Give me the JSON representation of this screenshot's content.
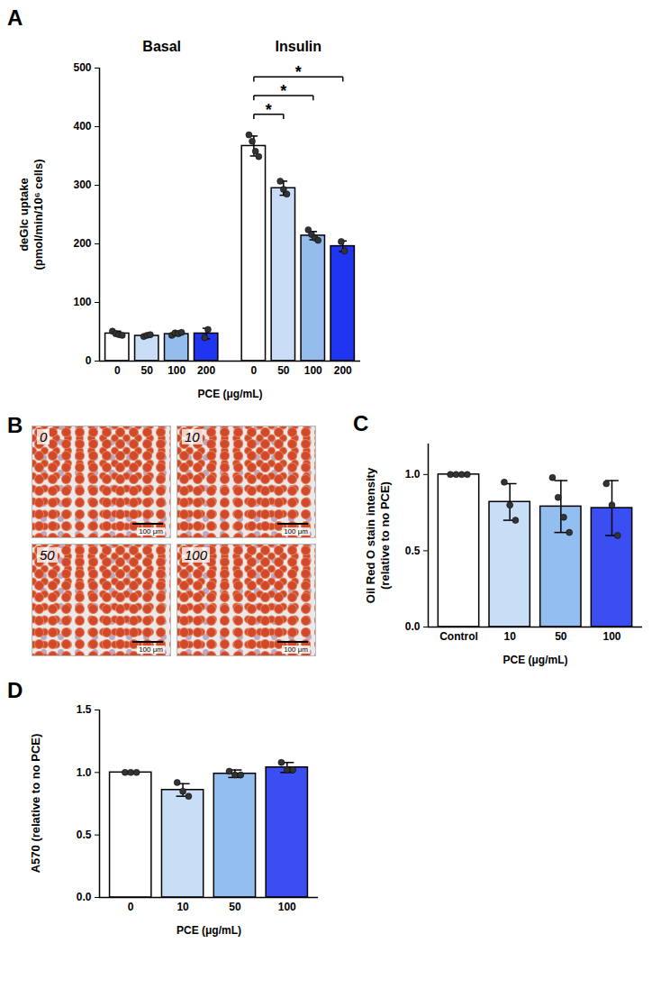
{
  "chart_data": [
    {
      "panel_label": "A",
      "type": "bar",
      "y_label": "deGlc uptake\n(pmol/min/10⁶ cells)",
      "x_label": "PCE (μg/mL)",
      "categories": [
        "0",
        "50",
        "100",
        "200"
      ],
      "colors": [
        "#ffffff",
        "#c9ddf6",
        "#94bdee",
        "#1f35f0"
      ],
      "series": [
        {
          "name": "Basal",
          "values": [
            47,
            43,
            46,
            47
          ],
          "errors": [
            4,
            2,
            3,
            9
          ],
          "points": [
            [
              51,
              47,
              45,
              44
            ],
            [
              42,
              44,
              45
            ],
            [
              44,
              48,
              47,
              49
            ],
            [
              40,
              54
            ]
          ]
        },
        {
          "name": "Insulin",
          "values": [
            367,
            295,
            214,
            196
          ],
          "errors": [
            17,
            12,
            7,
            9
          ],
          "points": [
            [
              386,
              375,
              358,
              349
            ],
            [
              307,
              293,
              285
            ],
            [
              224,
              216,
              210,
              206
            ],
            [
              204,
              188
            ]
          ]
        }
      ],
      "comparisons": [
        {
          "series": "Insulin",
          "from": "0",
          "to": "50",
          "label": "*"
        },
        {
          "series": "Insulin",
          "from": "0",
          "to": "100",
          "label": "*"
        },
        {
          "series": "Insulin",
          "from": "0",
          "to": "200",
          "label": "*"
        }
      ],
      "ylim": [
        0,
        500
      ],
      "yticks": [
        0,
        100,
        200,
        300,
        400,
        500
      ]
    },
    {
      "panel_label": "B",
      "type": "image_grid",
      "images": [
        {
          "label": "0",
          "scale_bar": "100 μm"
        },
        {
          "label": "10",
          "scale_bar": "100 μm"
        },
        {
          "label": "50",
          "scale_bar": "100 μm"
        },
        {
          "label": "100",
          "scale_bar": "100 μm"
        }
      ]
    },
    {
      "panel_label": "C",
      "type": "bar",
      "y_label": "Oil Red O stain intensity\n(relative to no PCE)",
      "x_label": "PCE (μg/mL)",
      "categories": [
        "Control",
        "10",
        "50",
        "100"
      ],
      "colors": [
        "#ffffff",
        "#c8ddf6",
        "#92bff0",
        "#3b4ef2"
      ],
      "values": [
        1.0,
        0.82,
        0.79,
        0.78
      ],
      "errors": [
        0,
        0.12,
        0.17,
        0.18
      ],
      "points": [
        [
          1,
          1,
          1,
          1
        ],
        [
          0.95,
          0.8,
          0.7
        ],
        [
          0.98,
          0.85,
          0.72,
          0.62
        ],
        [
          0.94,
          0.8,
          0.6
        ]
      ],
      "ylim": [
        0,
        1.2
      ],
      "yticks": [
        {
          "value": 0,
          "label": "0.0"
        },
        {
          "value": 0.5,
          "label": "0.5"
        },
        {
          "value": 1,
          "label": "1.0"
        }
      ]
    },
    {
      "panel_label": "D",
      "type": "bar",
      "y_label": "A570 (relative to no PCE)",
      "x_label": "PCE (μg/mL)",
      "categories": [
        "0",
        "10",
        "50",
        "100"
      ],
      "colors": [
        "#ffffff",
        "#c8ddf6",
        "#92bff0",
        "#3b4ef2"
      ],
      "values": [
        1.0,
        0.86,
        0.99,
        1.04
      ],
      "errors": [
        0,
        0.05,
        0.03,
        0.04
      ],
      "points": [
        [
          1,
          1,
          1
        ],
        [
          0.92,
          0.85,
          0.81
        ],
        [
          1.01,
          0.98,
          0.98
        ],
        [
          1.08,
          1.02,
          1.02
        ]
      ],
      "ylim": [
        0,
        1.5
      ],
      "yticks": [
        {
          "value": 0,
          "label": "0.0"
        },
        {
          "value": 0.5,
          "label": "0.5"
        },
        {
          "value": 1,
          "label": "1.0"
        },
        {
          "value": 1.5,
          "label": "1.5"
        }
      ]
    }
  ]
}
